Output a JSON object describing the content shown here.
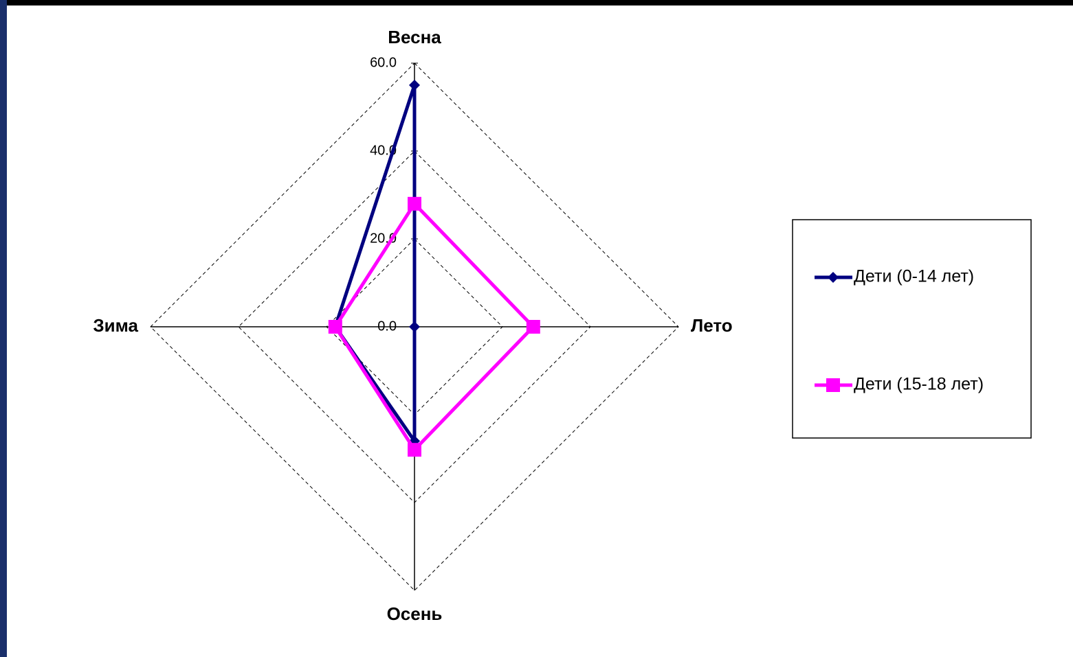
{
  "chart_data": {
    "type": "radar",
    "categories": [
      "Весна",
      "Лето",
      "Осень",
      "Зима"
    ],
    "series": [
      {
        "name": "Дети (0-14 лет)",
        "color": "#000080",
        "marker": "diamond",
        "values": [
          55,
          0,
          26,
          18
        ]
      },
      {
        "name": "Дети (15-18 лет)",
        "color": "#ff00ff",
        "marker": "square",
        "values": [
          28,
          27,
          28,
          18
        ]
      }
    ],
    "ylim": [
      0,
      60
    ],
    "yticks": [
      {
        "value": 0,
        "label": "0.0"
      },
      {
        "value": 20,
        "label": "20.0"
      },
      {
        "value": 40,
        "label": "40.0"
      },
      {
        "value": 60,
        "label": "60.0"
      }
    ],
    "grid": true,
    "legend": "right"
  }
}
